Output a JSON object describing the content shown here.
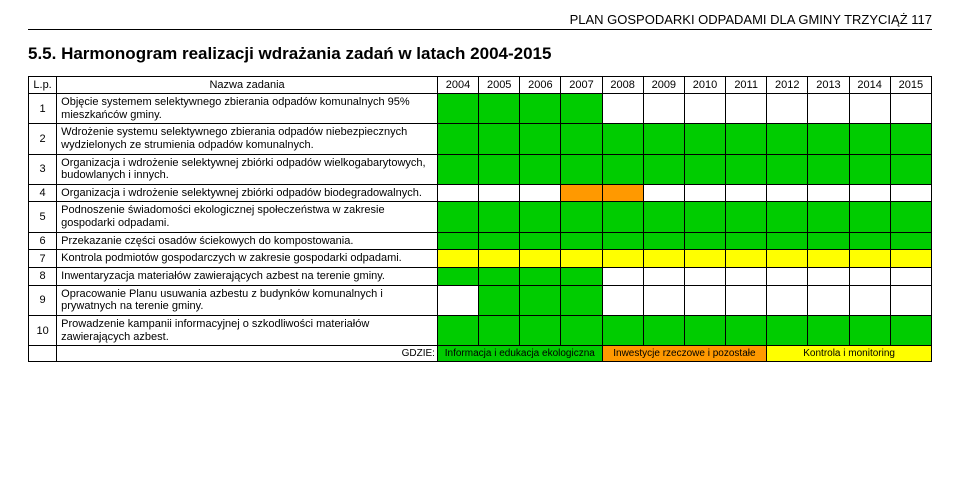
{
  "header": "PLAN GOSPODARKI ODPADAMI DLA GMINY TRZYCIĄŻ              117",
  "section_title": "5.5.  Harmonogram realizacji wdrażania zadań w latach 2004-2015",
  "columns": {
    "lp": "L.p.",
    "task": "Nazwa zadania",
    "years": [
      "2004",
      "2005",
      "2006",
      "2007",
      "2008",
      "2009",
      "2010",
      "2011",
      "2012",
      "2013",
      "2014",
      "2015"
    ]
  },
  "colors": {
    "info_education": "#00cc00",
    "investment": "#ff9900",
    "monitoring": "#ffff00",
    "white": "#ffffff"
  },
  "tasks": [
    {
      "n": "1",
      "text": "Objęcie systemem selektywnego zbierania odpadów komunalnych 95% mieszkańców gminy.",
      "cells": [
        "green",
        "green",
        "green",
        "green",
        "",
        "",
        "",
        "",
        "",
        "",
        "",
        ""
      ]
    },
    {
      "n": "2",
      "text": "Wdrożenie systemu selektywnego zbierania odpadów niebezpiecznych wydzielonych ze strumienia odpadów komunalnych.",
      "cells": [
        "green",
        "green",
        "green",
        "green",
        "green",
        "green",
        "green",
        "green",
        "green",
        "green",
        "green",
        "green"
      ]
    },
    {
      "n": "3",
      "text": "Organizacja i wdrożenie selektywnej zbiórki odpadów wielkogabarytowych, budowlanych i innych.",
      "cells": [
        "green",
        "green",
        "green",
        "green",
        "green",
        "green",
        "green",
        "green",
        "green",
        "green",
        "green",
        "green"
      ]
    },
    {
      "n": "4",
      "text": "Organizacja i wdrożenie selektywnej zbiórki odpadów biodegradowalnych.",
      "cells": [
        "",
        "",
        "",
        "orange",
        "orange",
        "",
        "",
        "",
        "",
        "",
        "",
        ""
      ]
    },
    {
      "n": "5",
      "text": "Podnoszenie świadomości ekologicznej społeczeństwa w zakresie gospodarki odpadami.",
      "cells": [
        "green",
        "green",
        "green",
        "green",
        "green",
        "green",
        "green",
        "green",
        "green",
        "green",
        "green",
        "green"
      ]
    },
    {
      "n": "6",
      "text": "Przekazanie części osadów ściekowych do kompostowania.",
      "cells": [
        "green",
        "green",
        "green",
        "green",
        "green",
        "green",
        "green",
        "green",
        "green",
        "green",
        "green",
        "green"
      ]
    },
    {
      "n": "7",
      "text": "Kontrola podmiotów gospodarczych w zakresie gospodarki odpadami.",
      "cells": [
        "yellow",
        "yellow",
        "yellow",
        "yellow",
        "yellow",
        "yellow",
        "yellow",
        "yellow",
        "yellow",
        "yellow",
        "yellow",
        "yellow"
      ]
    },
    {
      "n": "8",
      "text": "Inwentaryzacja materiałów zawierających azbest na terenie gminy.",
      "cells": [
        "green",
        "green",
        "green",
        "green",
        "",
        "",
        "",
        "",
        "",
        "",
        "",
        ""
      ]
    },
    {
      "n": "9",
      "text": "Opracowanie Planu usuwania azbestu z budynków komunalnych i prywatnych na terenie gminy.",
      "cells": [
        "",
        "green",
        "green",
        "green",
        "",
        "",
        "",
        "",
        "",
        "",
        "",
        ""
      ]
    },
    {
      "n": "10",
      "text": "Prowadzenie kampanii informacyjnej o szkodliwości materiałów zawierających azbest.",
      "cells": [
        "green",
        "green",
        "green",
        "green",
        "green",
        "green",
        "green",
        "green",
        "green",
        "green",
        "green",
        "green"
      ]
    }
  ],
  "legend": {
    "label": "GDZIE:",
    "items": [
      {
        "text": "Informacja i edukacja ekologiczna",
        "color": "green",
        "span": 4
      },
      {
        "text": "Inwestycje rzeczowe i pozostałe",
        "color": "orange",
        "span": 4
      },
      {
        "text": "Kontrola i monitoring",
        "color": "yellow",
        "span": 4
      }
    ]
  }
}
